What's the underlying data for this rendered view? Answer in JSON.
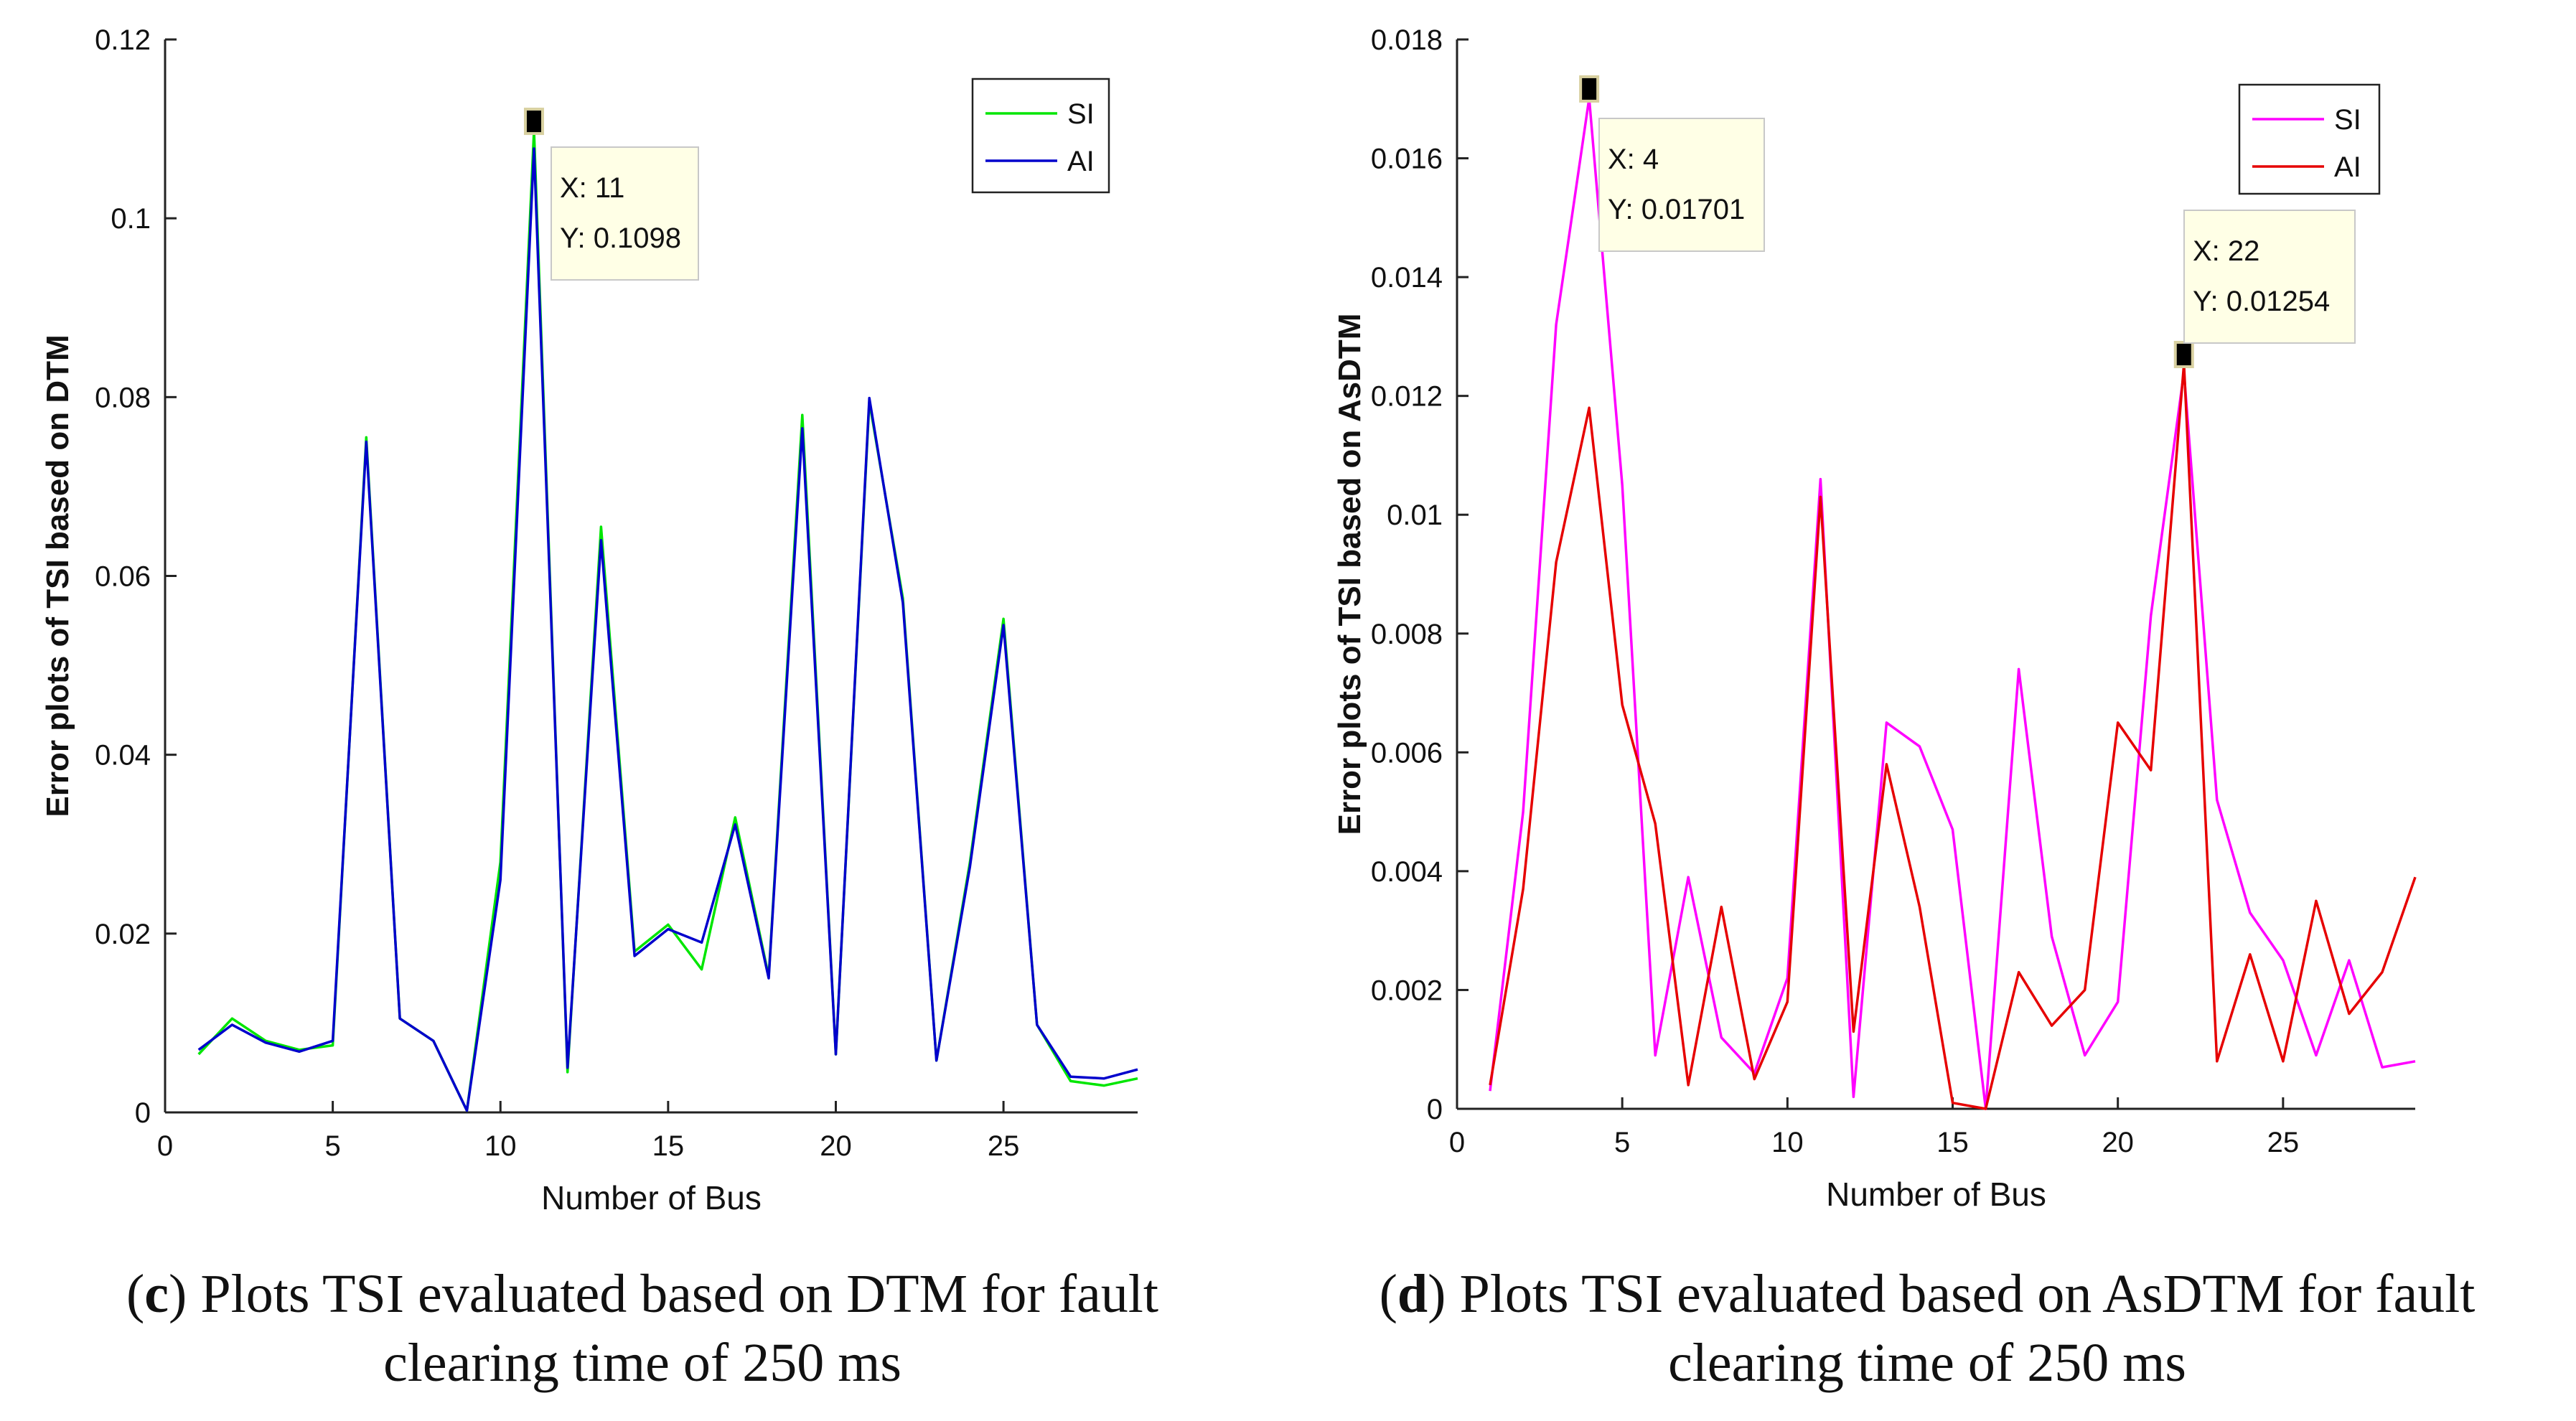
{
  "chart_data": [
    {
      "id": "c",
      "type": "line",
      "xlabel": "Number of Bus",
      "ylabel": "Error plots of TSI based on DTM",
      "xlim": [
        0,
        29
      ],
      "ylim": [
        0,
        0.12
      ],
      "xticks": [
        0,
        5,
        10,
        15,
        20,
        25
      ],
      "xtick_labels": [
        "0",
        "5",
        "10",
        "15",
        "20",
        "25"
      ],
      "yticks": [
        0,
        0.02,
        0.04,
        0.06,
        0.08,
        0.1,
        0.12
      ],
      "ytick_labels": [
        "0",
        "0.02",
        "0.04",
        "0.06",
        "0.08",
        "0.1",
        "0.12"
      ],
      "grid": false,
      "legend_position": "top-right",
      "x": [
        1,
        2,
        3,
        4,
        5,
        6,
        7,
        8,
        9,
        10,
        11,
        12,
        13,
        14,
        15,
        16,
        17,
        18,
        19,
        20,
        21,
        22,
        23,
        24,
        25,
        26,
        27,
        28,
        29
      ],
      "series": [
        {
          "name": "SI",
          "color": "#00e600",
          "values": [
            0.0065,
            0.0105,
            0.008,
            0.007,
            0.0075,
            0.0755,
            0.0105,
            0.008,
            0.0002,
            0.028,
            0.1098,
            0.0045,
            0.0655,
            0.018,
            0.021,
            0.016,
            0.033,
            0.0152,
            0.078,
            0.0065,
            0.0795,
            0.0575,
            0.0058,
            0.028,
            0.0552,
            0.0098,
            0.0035,
            0.003,
            0.0038
          ]
        },
        {
          "name": "AI",
          "color": "#0000cc",
          "values": [
            0.007,
            0.0098,
            0.0078,
            0.0068,
            0.008,
            0.075,
            0.0105,
            0.008,
            0.0002,
            0.026,
            0.1078,
            0.005,
            0.064,
            0.0175,
            0.0205,
            0.019,
            0.0322,
            0.015,
            0.0765,
            0.0065,
            0.0799,
            0.057,
            0.0058,
            0.0275,
            0.0545,
            0.0098,
            0.004,
            0.0038,
            0.0048
          ]
        }
      ],
      "datatip": {
        "x": 11,
        "y": 0.1098,
        "line1": "X: 11",
        "line2": "Y: 0.1098"
      },
      "caption_label": "c",
      "caption_line1": ") Plots TSI evaluated based on DTM for fault",
      "caption_line2": "clearing time of 250 ms"
    },
    {
      "id": "d",
      "type": "line",
      "xlabel": "Number of Bus",
      "ylabel": "Error plots of TSI based on AsDTM",
      "xlim": [
        0,
        29
      ],
      "ylim": [
        0,
        0.018
      ],
      "xticks": [
        0,
        5,
        10,
        15,
        20,
        25
      ],
      "xtick_labels": [
        "0",
        "5",
        "10",
        "15",
        "20",
        "25"
      ],
      "yticks": [
        0,
        0.002,
        0.004,
        0.006,
        0.008,
        0.01,
        0.012,
        0.014,
        0.016,
        0.018
      ],
      "ytick_labels": [
        "0",
        "0.002",
        "0.004",
        "0.006",
        "0.008",
        "0.01",
        "0.012",
        "0.014",
        "0.016",
        "0.018"
      ],
      "grid": false,
      "legend_position": "top-right",
      "x": [
        1,
        2,
        3,
        4,
        5,
        6,
        7,
        8,
        9,
        10,
        11,
        12,
        13,
        14,
        15,
        16,
        17,
        18,
        19,
        20,
        21,
        22,
        23,
        24,
        25,
        26,
        27,
        28,
        29
      ],
      "series": [
        {
          "name": "SI",
          "color": "#ff00ff",
          "values": [
            0.0003,
            0.005,
            0.0132,
            0.01701,
            0.0105,
            0.0009,
            0.0039,
            0.0012,
            0.0006,
            0.0022,
            0.0106,
            0.0002,
            0.0065,
            0.0061,
            0.0047,
            0.0,
            0.0074,
            0.0029,
            0.0009,
            0.0018,
            0.0083,
            0.0124,
            0.0052,
            0.0033,
            0.0025,
            0.0009,
            0.0025,
            0.0007,
            0.0008
          ]
        },
        {
          "name": "AI",
          "color": "#e60000",
          "values": [
            0.0004,
            0.0037,
            0.0092,
            0.0118,
            0.0068,
            0.0048,
            0.0004,
            0.0034,
            0.0005,
            0.0018,
            0.0103,
            0.0013,
            0.0058,
            0.0034,
            0.0001,
            0.0,
            0.0023,
            0.0014,
            0.002,
            0.0065,
            0.0057,
            0.01254,
            0.0008,
            0.0026,
            0.0008,
            0.0035,
            0.0016,
            0.0023,
            0.0039
          ]
        }
      ],
      "datatips": [
        {
          "x": 4,
          "y": 0.01701,
          "line1": "X: 4",
          "line2": "Y: 0.01701"
        },
        {
          "x": 22,
          "y": 0.01254,
          "line1": "X: 22",
          "line2": "Y: 0.01254"
        }
      ],
      "caption_label": "d",
      "caption_line1": ") Plots TSI evaluated based on AsDTM for fault",
      "caption_line2": "clearing time of 250 ms"
    }
  ]
}
